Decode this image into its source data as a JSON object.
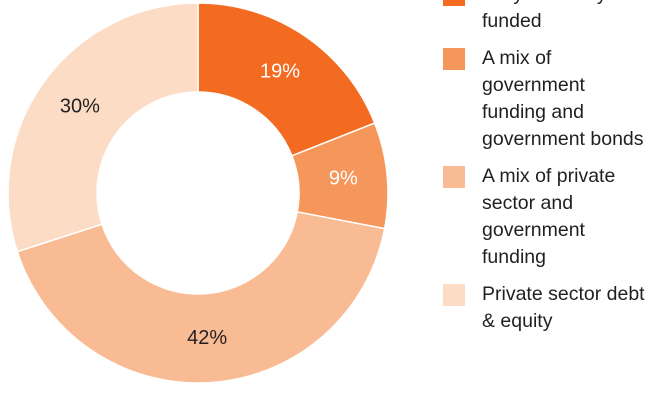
{
  "chart_data": {
    "type": "donut",
    "categories": [
      "Fully internally funded",
      "A mix of government funding and government bonds",
      "A mix of private sector and government funding",
      "Private sector debt & equity"
    ],
    "values": [
      19,
      9,
      42,
      30
    ],
    "value_labels": [
      "19%",
      "9%",
      "42%",
      "30%"
    ],
    "colors": [
      "#f26b21",
      "#f5965a",
      "#f9bb93",
      "#fcdcc4"
    ],
    "label_colors": [
      "#ffffff",
      "#ffffff",
      "#231f20",
      "#231f20"
    ]
  }
}
